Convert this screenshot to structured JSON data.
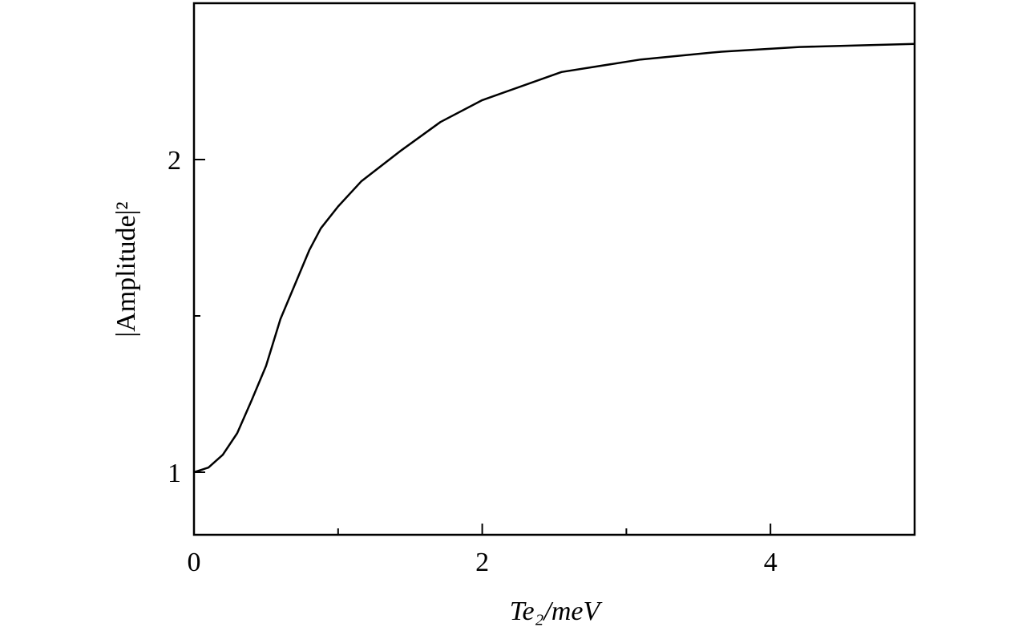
{
  "chart_data": {
    "type": "line",
    "x_label": "Te₂/meV",
    "y_label": "|Amplitude|²",
    "x": [
      0,
      0.1,
      0.2,
      0.3,
      0.4,
      0.5,
      0.6,
      0.7,
      0.8,
      0.88,
      1.0,
      1.16,
      1.44,
      1.71,
      2.0,
      2.55,
      3.1,
      3.66,
      4.2,
      5.0
    ],
    "values": [
      1.0,
      1.015,
      1.056,
      1.125,
      1.23,
      1.34,
      1.49,
      1.6,
      1.71,
      1.78,
      1.85,
      1.93,
      2.03,
      2.12,
      2.19,
      2.28,
      2.32,
      2.345,
      2.36,
      2.37
    ],
    "color": "#000000",
    "xlim": [
      0,
      5
    ],
    "xticks": [
      0,
      2,
      4
    ],
    "xminorticks": [
      1,
      3
    ],
    "ylim": [
      0.8,
      2.5
    ],
    "yticks": [
      1,
      2
    ],
    "yminorticks": [
      1.5
    ]
  }
}
